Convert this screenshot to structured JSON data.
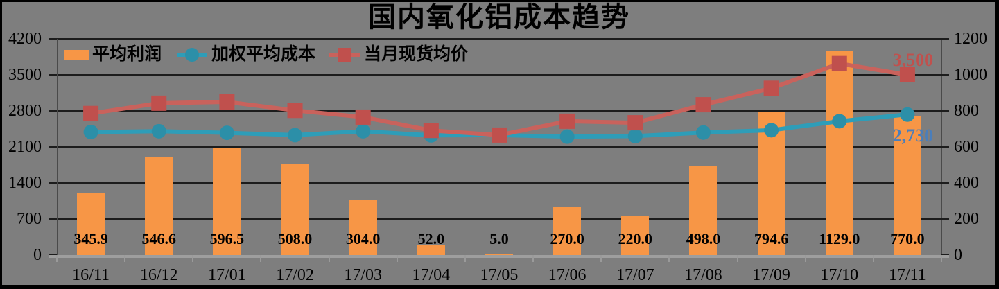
{
  "title": "国内氧化铝成本趋势",
  "colors": {
    "background": "#7E7E7E",
    "text": "#000000",
    "gridline": "#1C1C1C",
    "plot_border": "#4A4A4A",
    "axis_tick": "#1C1C1C",
    "x_axis_line": "#9E9E9E",
    "x_axis_tick": "#9A9A9A",
    "frame": "#000000"
  },
  "chart_data": {
    "type": "combo-bar-line",
    "categories": [
      "16/11",
      "16/12",
      "17/01",
      "17/02",
      "17/03",
      "17/04",
      "17/05",
      "17/06",
      "17/07",
      "17/08",
      "17/09",
      "17/10",
      "17/11"
    ],
    "series": [
      {
        "name": "平均利润",
        "type": "bar",
        "axis": "right",
        "color": "#F79646",
        "values": [
          345.9,
          546.6,
          596.5,
          508.0,
          304.0,
          52.0,
          5.0,
          270.0,
          220.0,
          498.0,
          794.6,
          1129.0,
          770.0
        ],
        "value_labels": [
          "345.9",
          "546.6",
          "596.5",
          "508.0",
          "304.0",
          "52.0",
          "5.0",
          "270.0",
          "220.0",
          "498.0",
          "794.6",
          "1129.0",
          "770.0"
        ]
      },
      {
        "name": "加权平均成本",
        "type": "line",
        "marker": "circle",
        "axis": "left",
        "line_color": "#2E9DB8",
        "marker_color": "#2C8FA8",
        "values": [
          2390,
          2405,
          2375,
          2330,
          2405,
          2325,
          2330,
          2300,
          2310,
          2380,
          2425,
          2600,
          2730
        ],
        "end_label": "2,730",
        "end_label_color": "#4A7EBB"
      },
      {
        "name": "当月现货均价",
        "type": "line",
        "marker": "square",
        "axis": "left",
        "line_color": "#C9625C",
        "marker_color": "#C0504D",
        "values": [
          2750,
          2950,
          2975,
          2810,
          2680,
          2420,
          2330,
          2600,
          2570,
          2920,
          3240,
          3720,
          3500
        ],
        "end_label": "3,500",
        "end_label_color": "#C0504D"
      }
    ],
    "left_axis": {
      "min": 0,
      "max": 4200,
      "ticks": [
        "0",
        "700",
        "1400",
        "2100",
        "2800",
        "3500",
        "4200"
      ]
    },
    "right_axis": {
      "min": 0,
      "max": 1200,
      "ticks": [
        "0",
        "200",
        "400",
        "600",
        "800",
        "1000",
        "1200"
      ]
    },
    "grid": true,
    "legend_position": "top-left"
  }
}
